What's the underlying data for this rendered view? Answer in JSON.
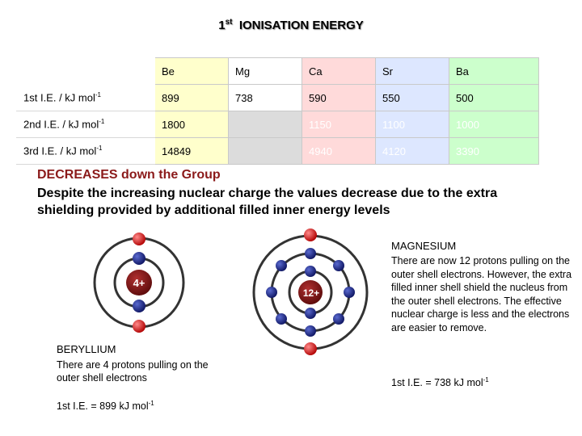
{
  "title": {
    "prefix": "1",
    "sup": "st",
    "text": "IONISATION ENERGY"
  },
  "table": {
    "elements": [
      "Be",
      "Mg",
      "Ca",
      "Sr",
      "Ba"
    ],
    "rows": [
      {
        "label": "1st I.E. / kJ mol",
        "unit_sup": "-1",
        "values": [
          "899",
          "738",
          "590",
          "550",
          "500"
        ]
      },
      {
        "label": "2nd I.E. / kJ mol",
        "unit_sup": "-1",
        "values": [
          "1800",
          "",
          "1150",
          "1100",
          "1000"
        ]
      },
      {
        "label": "3rd I.E. / kJ mol",
        "unit_sup": "-1",
        "values": [
          "14849",
          "",
          "4940",
          "4120",
          "3390"
        ]
      }
    ],
    "colors": {
      "Be": "#ffffcc",
      "Mg": "#ffffff",
      "Ca": "#ffdada",
      "Sr": "#dde7ff",
      "Ba": "#ccffcc"
    }
  },
  "trend": {
    "heading": "DECREASES down the Group",
    "explanation": "Despite the increasing nuclear charge the values decrease due to the extra shielding provided by additional filled inner energy levels"
  },
  "beryllium": {
    "nucleus_label": "4+",
    "name": "BERYLLIUM",
    "description": "There are 4 protons pulling on the outer shell electrons",
    "ie_text": "1st I.E. = 899 kJ mol",
    "ie_sup": "-1"
  },
  "magnesium": {
    "nucleus_label": "12+",
    "name": "MAGNESIUM",
    "description": "There are now 12 protons pulling on the outer shell electrons. However, the extra filled inner shell shield the nucleus from the outer shell electrons. The effective nuclear charge is less and the electrons are easier to remove.",
    "ie_text": "1st I.E. = 738 kJ mol",
    "ie_sup": "-1"
  },
  "colors": {
    "nucleus": "#8b1a1a",
    "inner_electron": "#1a237e",
    "outer_electron": "#c62828",
    "heading": "#8b1a1a"
  }
}
